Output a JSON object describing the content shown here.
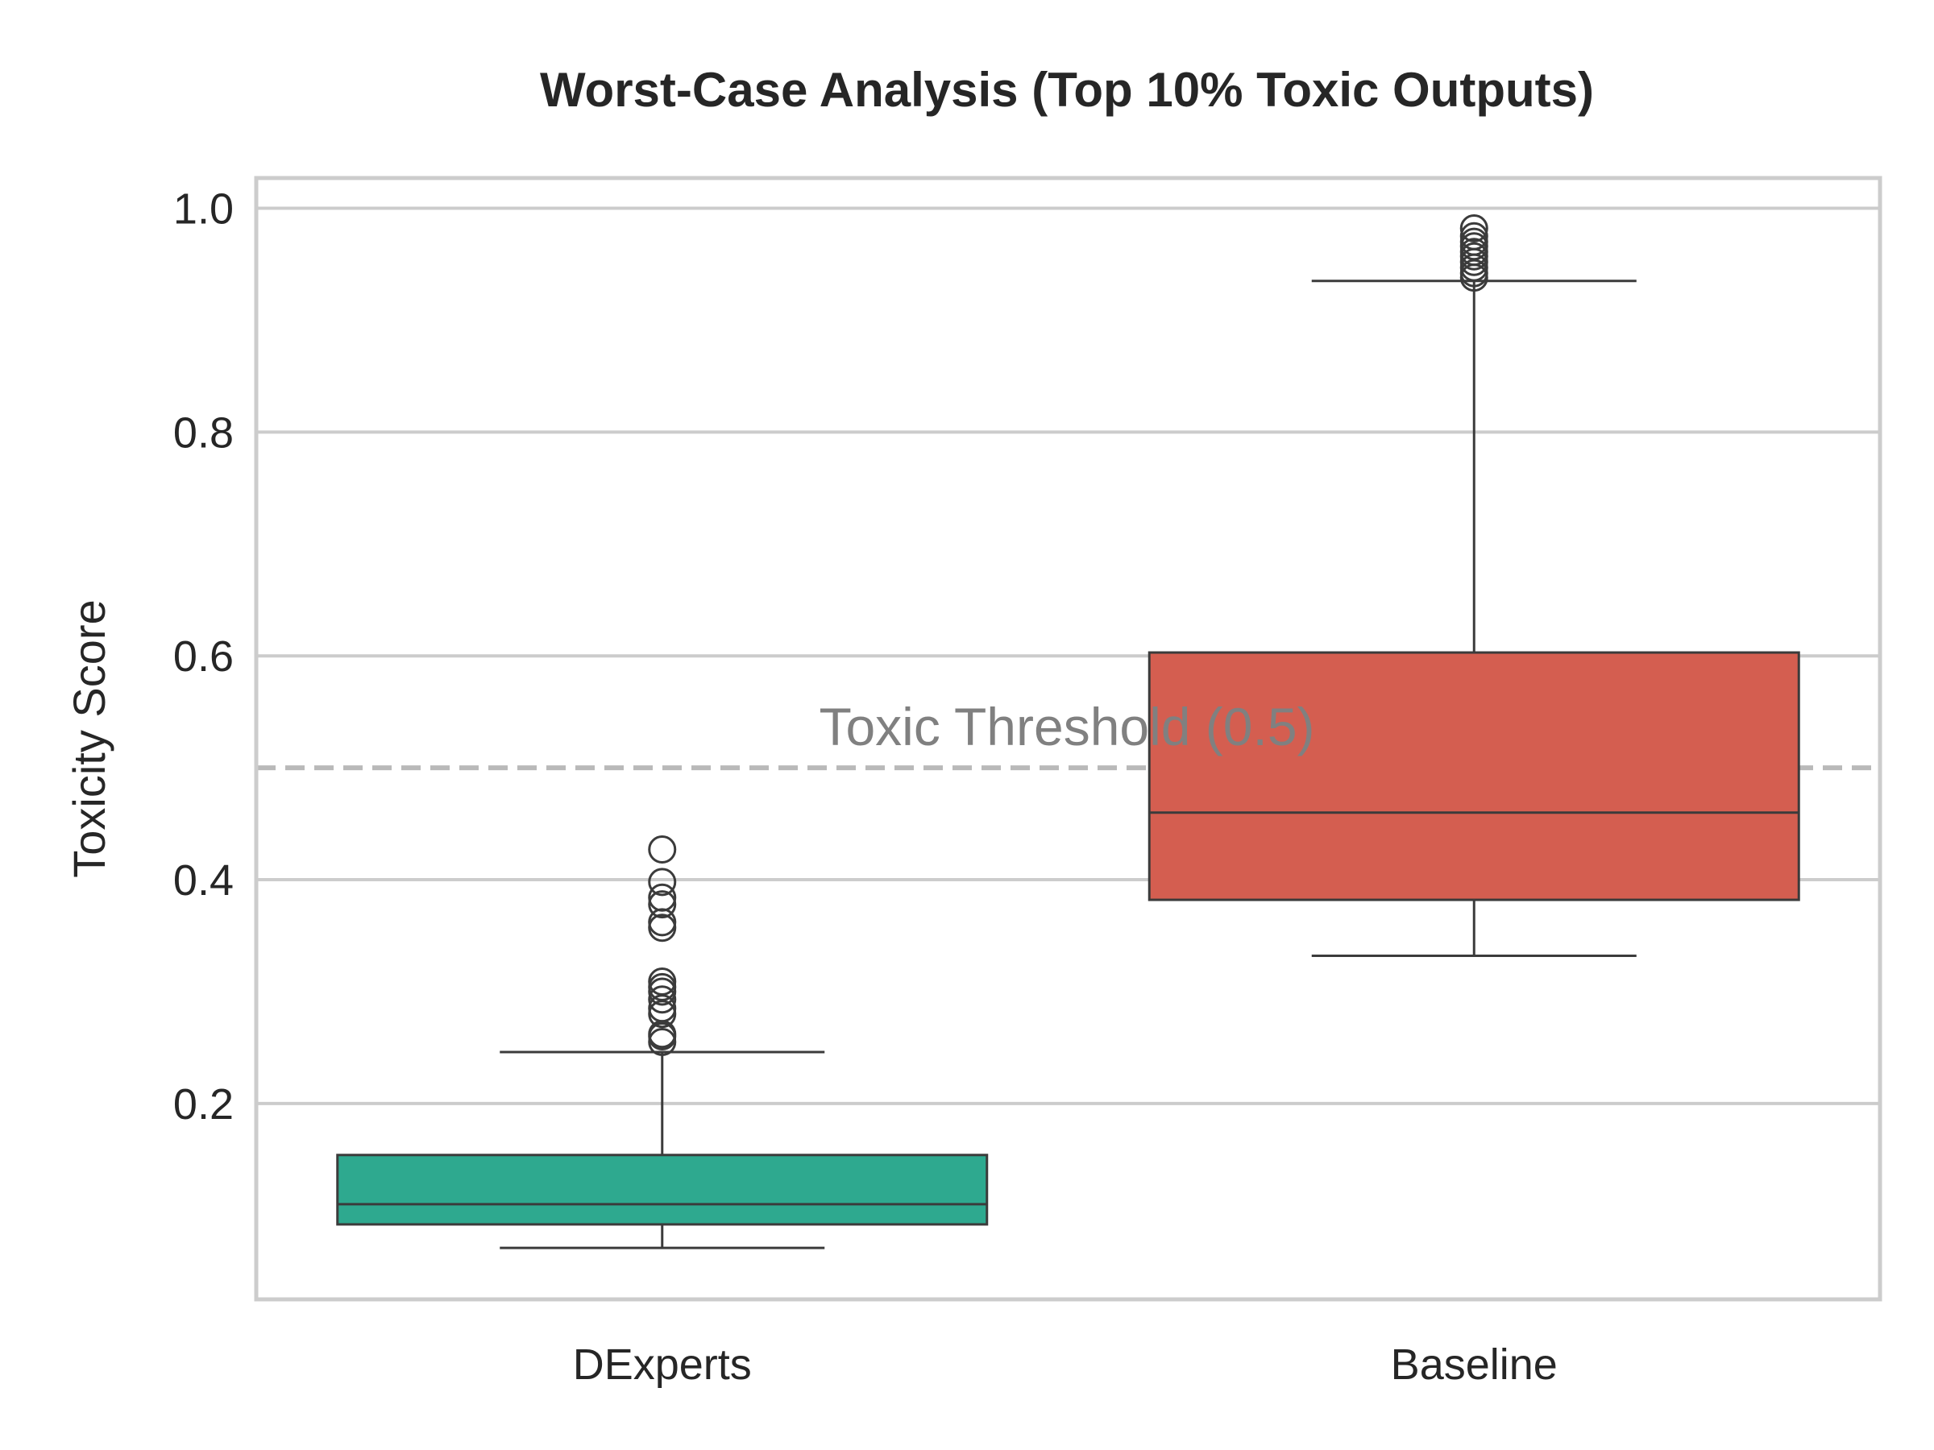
{
  "chart_data": {
    "type": "box",
    "title": "Worst-Case Analysis (Top 10% Toxic Outputs)",
    "xlabel": "",
    "ylabel": "Toxicity Score",
    "ylim": [
      0.025,
      1.027
    ],
    "yticks": [
      "0.2",
      "0.4",
      "0.6",
      "0.8",
      "1.0"
    ],
    "grid": true,
    "categories": [
      "DExperts",
      "Baseline"
    ],
    "boxes": [
      {
        "category": "DExperts",
        "color": "#2ea98f",
        "whisker_low": 0.071,
        "q1": 0.092,
        "median": 0.11,
        "q3": 0.154,
        "whisker_high": 0.246,
        "outliers": [
          0.255,
          0.26,
          0.262,
          0.28,
          0.285,
          0.293,
          0.3,
          0.304,
          0.309,
          0.357,
          0.362,
          0.378,
          0.384,
          0.398,
          0.427
        ]
      },
      {
        "category": "Baseline",
        "color": "#d45e50",
        "whisker_low": 0.332,
        "q1": 0.382,
        "median": 0.46,
        "q3": 0.603,
        "whisker_high": 0.935,
        "outliers": [
          0.938,
          0.942,
          0.947,
          0.952,
          0.957,
          0.961,
          0.966,
          0.97,
          0.975,
          0.982
        ]
      }
    ],
    "reference_line": {
      "value": 0.5,
      "label": "Toxic Threshold (0.5)",
      "color": "#b9b9b9"
    }
  }
}
